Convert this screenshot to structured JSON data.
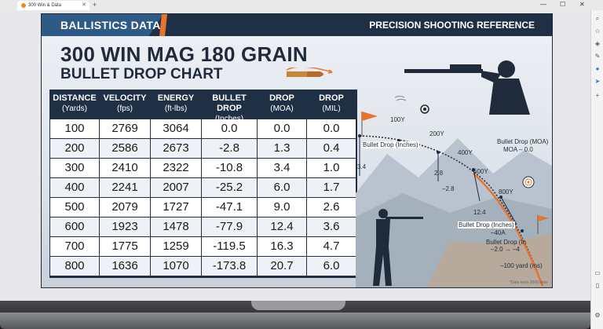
{
  "browser": {
    "tab_title": "300 Win & Data",
    "new_tab": "+",
    "window_controls": [
      "—",
      "☐",
      "✕"
    ]
  },
  "header": {
    "brand": "BALLISTICS DATA",
    "right": "PRECISION SHOOTING REFERENCE"
  },
  "title": {
    "line1": "300 WIN MAG 180 GRAIN",
    "line2": "BULLET DROP CHART"
  },
  "table": {
    "columns": [
      {
        "name": "DISTANCE",
        "unit": "(Yards)"
      },
      {
        "name": "VELOCITY",
        "unit": "(fps)"
      },
      {
        "name": "ENERGY",
        "unit": "(ft-lbs)"
      },
      {
        "name": "BULLET DROP",
        "unit": "(Inches)"
      },
      {
        "name": "DROP",
        "unit": "(MOA)"
      },
      {
        "name": "DROP",
        "unit": "(MIL)"
      }
    ],
    "rows": [
      [
        "100",
        "2769",
        "3064",
        "0.0",
        "0.0",
        "0.0"
      ],
      [
        "200",
        "2586",
        "2673",
        "-2.8",
        "1.3",
        "0.4"
      ],
      [
        "300",
        "2410",
        "2322",
        "-10.8",
        "3.4",
        "1.0"
      ],
      [
        "400",
        "2241",
        "2007",
        "-25.2",
        "6.0",
        "1.7"
      ],
      [
        "500",
        "2079",
        "1727",
        "-47.1",
        "9.0",
        "2.6"
      ],
      [
        "600",
        "1923",
        "1478",
        "-77.9",
        "12.4",
        "3.6"
      ],
      [
        "700",
        "1775",
        "1259",
        "-119.5",
        "16.3",
        "4.7"
      ],
      [
        "800",
        "1636",
        "1070",
        "-173.8",
        "20.7",
        "6.0"
      ]
    ]
  },
  "diagram": {
    "labels": {
      "y100": "100Y",
      "y200": "200Y",
      "y400": "400Y",
      "y600": "600Y",
      "y800": "800Y",
      "drop_inches": "Bullet Drop (Inches)",
      "drop_moa": "Bullet Drop (MOA)",
      "moa_zero": "MOA – 0.0",
      "v34": "3.4",
      "v28a": "2.8",
      "v28b": "–2.8",
      "v124": "12.4",
      "drop_inches2": "Bullet Drop (Inches)",
      "minus40a": "–40A",
      "drop_in_short": "Bullet Drop (In",
      "drop_in_vals": "–2.0 → –4",
      "yard_ms": "–100 yard (ms)"
    },
    "footnote": "*Data tests 2000 data"
  },
  "colors": {
    "navy": "#1f2f44",
    "accent_blue": "#2e5a86",
    "orange": "#e8742a"
  }
}
